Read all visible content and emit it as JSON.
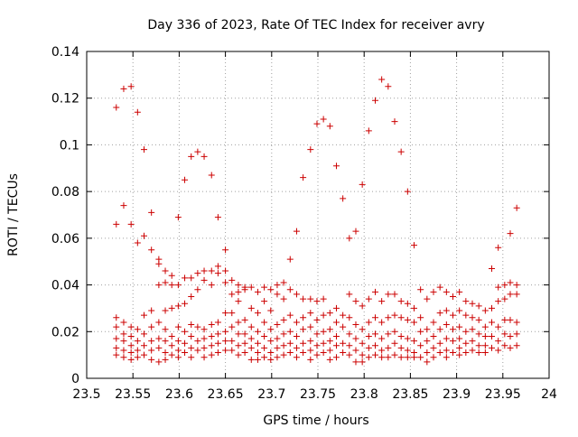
{
  "chart_data": {
    "type": "scatter",
    "title": "Day 336 of 2023, Rate Of TEC Index for receiver avry",
    "xlabel": "GPS time / hours",
    "ylabel": "ROTI / TECUs",
    "xlim": [
      23.5,
      24.0
    ],
    "ylim": [
      0,
      0.14
    ],
    "xticks": [
      "23.5",
      "23.55",
      "23.6",
      "23.65",
      "23.7",
      "23.75",
      "23.8",
      "23.85",
      "23.9",
      "23.95",
      "24"
    ],
    "yticks": [
      "0",
      "0.02",
      "0.04",
      "0.06",
      "0.08",
      "0.1",
      "0.12",
      "0.14"
    ],
    "grid": true,
    "marker": "+",
    "color": "#cc0000",
    "points": [
      [
        23.532,
        0.116
      ],
      [
        23.532,
        0.066
      ],
      [
        23.532,
        0.026
      ],
      [
        23.532,
        0.022
      ],
      [
        23.532,
        0.017
      ],
      [
        23.532,
        0.013
      ],
      [
        23.532,
        0.01
      ],
      [
        23.54,
        0.124
      ],
      [
        23.54,
        0.074
      ],
      [
        23.54,
        0.024
      ],
      [
        23.54,
        0.019
      ],
      [
        23.54,
        0.016
      ],
      [
        23.54,
        0.012
      ],
      [
        23.54,
        0.009
      ],
      [
        23.548,
        0.125
      ],
      [
        23.548,
        0.066
      ],
      [
        23.548,
        0.022
      ],
      [
        23.548,
        0.018
      ],
      [
        23.548,
        0.014
      ],
      [
        23.548,
        0.011
      ],
      [
        23.548,
        0.008
      ],
      [
        23.555,
        0.114
      ],
      [
        23.555,
        0.058
      ],
      [
        23.555,
        0.021
      ],
      [
        23.555,
        0.016
      ],
      [
        23.555,
        0.012
      ],
      [
        23.555,
        0.009
      ],
      [
        23.562,
        0.098
      ],
      [
        23.562,
        0.061
      ],
      [
        23.562,
        0.027
      ],
      [
        23.562,
        0.019
      ],
      [
        23.562,
        0.014
      ],
      [
        23.562,
        0.01
      ],
      [
        23.57,
        0.071
      ],
      [
        23.57,
        0.055
      ],
      [
        23.57,
        0.029
      ],
      [
        23.57,
        0.022
      ],
      [
        23.57,
        0.016
      ],
      [
        23.57,
        0.012
      ],
      [
        23.57,
        0.008
      ],
      [
        23.578,
        0.051
      ],
      [
        23.578,
        0.049
      ],
      [
        23.578,
        0.04
      ],
      [
        23.578,
        0.024
      ],
      [
        23.578,
        0.017
      ],
      [
        23.578,
        0.013
      ],
      [
        23.578,
        0.007
      ],
      [
        23.585,
        0.046
      ],
      [
        23.585,
        0.041
      ],
      [
        23.585,
        0.029
      ],
      [
        23.585,
        0.021
      ],
      [
        23.585,
        0.016
      ],
      [
        23.585,
        0.011
      ],
      [
        23.585,
        0.008
      ],
      [
        23.592,
        0.044
      ],
      [
        23.592,
        0.04
      ],
      [
        23.592,
        0.03
      ],
      [
        23.592,
        0.018
      ],
      [
        23.592,
        0.014
      ],
      [
        23.592,
        0.01
      ],
      [
        23.599,
        0.069
      ],
      [
        23.599,
        0.04
      ],
      [
        23.599,
        0.031
      ],
      [
        23.599,
        0.022
      ],
      [
        23.599,
        0.016
      ],
      [
        23.599,
        0.012
      ],
      [
        23.599,
        0.009
      ],
      [
        23.606,
        0.085
      ],
      [
        23.606,
        0.043
      ],
      [
        23.606,
        0.032
      ],
      [
        23.606,
        0.02
      ],
      [
        23.606,
        0.015
      ],
      [
        23.606,
        0.011
      ],
      [
        23.613,
        0.095
      ],
      [
        23.613,
        0.043
      ],
      [
        23.613,
        0.035
      ],
      [
        23.613,
        0.023
      ],
      [
        23.613,
        0.018
      ],
      [
        23.613,
        0.013
      ],
      [
        23.613,
        0.009
      ],
      [
        23.62,
        0.097
      ],
      [
        23.62,
        0.045
      ],
      [
        23.62,
        0.038
      ],
      [
        23.62,
        0.022
      ],
      [
        23.62,
        0.016
      ],
      [
        23.62,
        0.012
      ],
      [
        23.627,
        0.095
      ],
      [
        23.627,
        0.046
      ],
      [
        23.627,
        0.042
      ],
      [
        23.627,
        0.021
      ],
      [
        23.627,
        0.017
      ],
      [
        23.627,
        0.013
      ],
      [
        23.627,
        0.009
      ],
      [
        23.635,
        0.087
      ],
      [
        23.635,
        0.046
      ],
      [
        23.635,
        0.04
      ],
      [
        23.635,
        0.023
      ],
      [
        23.635,
        0.018
      ],
      [
        23.635,
        0.014
      ],
      [
        23.635,
        0.01
      ],
      [
        23.642,
        0.069
      ],
      [
        23.642,
        0.048
      ],
      [
        23.642,
        0.045
      ],
      [
        23.642,
        0.024
      ],
      [
        23.642,
        0.019
      ],
      [
        23.642,
        0.015
      ],
      [
        23.642,
        0.011
      ],
      [
        23.65,
        0.055
      ],
      [
        23.65,
        0.046
      ],
      [
        23.65,
        0.041
      ],
      [
        23.65,
        0.028
      ],
      [
        23.65,
        0.02
      ],
      [
        23.65,
        0.016
      ],
      [
        23.65,
        0.012
      ],
      [
        23.657,
        0.042
      ],
      [
        23.657,
        0.036
      ],
      [
        23.657,
        0.028
      ],
      [
        23.657,
        0.022
      ],
      [
        23.657,
        0.016
      ],
      [
        23.657,
        0.012
      ],
      [
        23.664,
        0.04
      ],
      [
        23.664,
        0.037
      ],
      [
        23.664,
        0.033
      ],
      [
        23.664,
        0.024
      ],
      [
        23.664,
        0.019
      ],
      [
        23.664,
        0.014
      ],
      [
        23.664,
        0.01
      ],
      [
        23.671,
        0.039
      ],
      [
        23.671,
        0.038
      ],
      [
        23.671,
        0.025
      ],
      [
        23.671,
        0.019
      ],
      [
        23.671,
        0.015
      ],
      [
        23.671,
        0.011
      ],
      [
        23.678,
        0.039
      ],
      [
        23.678,
        0.03
      ],
      [
        23.678,
        0.022
      ],
      [
        23.678,
        0.017
      ],
      [
        23.678,
        0.013
      ],
      [
        23.678,
        0.008
      ],
      [
        23.685,
        0.037
      ],
      [
        23.685,
        0.028
      ],
      [
        23.685,
        0.02
      ],
      [
        23.685,
        0.015
      ],
      [
        23.685,
        0.011
      ],
      [
        23.685,
        0.008
      ],
      [
        23.692,
        0.039
      ],
      [
        23.692,
        0.033
      ],
      [
        23.692,
        0.024
      ],
      [
        23.692,
        0.018
      ],
      [
        23.692,
        0.013
      ],
      [
        23.692,
        0.009
      ],
      [
        23.699,
        0.038
      ],
      [
        23.699,
        0.029
      ],
      [
        23.699,
        0.021
      ],
      [
        23.699,
        0.016
      ],
      [
        23.699,
        0.011
      ],
      [
        23.699,
        0.008
      ],
      [
        23.706,
        0.04
      ],
      [
        23.706,
        0.036
      ],
      [
        23.706,
        0.023
      ],
      [
        23.706,
        0.017
      ],
      [
        23.706,
        0.013
      ],
      [
        23.706,
        0.009
      ],
      [
        23.713,
        0.041
      ],
      [
        23.713,
        0.034
      ],
      [
        23.713,
        0.025
      ],
      [
        23.713,
        0.019
      ],
      [
        23.713,
        0.014
      ],
      [
        23.713,
        0.01
      ],
      [
        23.72,
        0.051
      ],
      [
        23.72,
        0.038
      ],
      [
        23.72,
        0.027
      ],
      [
        23.72,
        0.02
      ],
      [
        23.72,
        0.015
      ],
      [
        23.72,
        0.011
      ],
      [
        23.727,
        0.063
      ],
      [
        23.727,
        0.036
      ],
      [
        23.727,
        0.024
      ],
      [
        23.727,
        0.018
      ],
      [
        23.727,
        0.013
      ],
      [
        23.727,
        0.009
      ],
      [
        23.734,
        0.086
      ],
      [
        23.734,
        0.034
      ],
      [
        23.734,
        0.026
      ],
      [
        23.734,
        0.021
      ],
      [
        23.734,
        0.015
      ],
      [
        23.734,
        0.011
      ],
      [
        23.742,
        0.098
      ],
      [
        23.742,
        0.034
      ],
      [
        23.742,
        0.028
      ],
      [
        23.742,
        0.022
      ],
      [
        23.742,
        0.016
      ],
      [
        23.742,
        0.012
      ],
      [
        23.742,
        0.008
      ],
      [
        23.749,
        0.109
      ],
      [
        23.749,
        0.033
      ],
      [
        23.749,
        0.025
      ],
      [
        23.749,
        0.019
      ],
      [
        23.749,
        0.014
      ],
      [
        23.749,
        0.01
      ],
      [
        23.756,
        0.111
      ],
      [
        23.756,
        0.034
      ],
      [
        23.756,
        0.027
      ],
      [
        23.756,
        0.02
      ],
      [
        23.756,
        0.015
      ],
      [
        23.756,
        0.011
      ],
      [
        23.763,
        0.108
      ],
      [
        23.763,
        0.028
      ],
      [
        23.763,
        0.021
      ],
      [
        23.763,
        0.016
      ],
      [
        23.763,
        0.012
      ],
      [
        23.763,
        0.008
      ],
      [
        23.77,
        0.091
      ],
      [
        23.77,
        0.03
      ],
      [
        23.77,
        0.024
      ],
      [
        23.77,
        0.018
      ],
      [
        23.77,
        0.014
      ],
      [
        23.77,
        0.009
      ],
      [
        23.777,
        0.077
      ],
      [
        23.777,
        0.027
      ],
      [
        23.777,
        0.022
      ],
      [
        23.777,
        0.015
      ],
      [
        23.777,
        0.011
      ],
      [
        23.784,
        0.06
      ],
      [
        23.784,
        0.036
      ],
      [
        23.784,
        0.026
      ],
      [
        23.784,
        0.019
      ],
      [
        23.784,
        0.014
      ],
      [
        23.784,
        0.01
      ],
      [
        23.791,
        0.063
      ],
      [
        23.791,
        0.033
      ],
      [
        23.791,
        0.023
      ],
      [
        23.791,
        0.017
      ],
      [
        23.791,
        0.012
      ],
      [
        23.791,
        0.007
      ],
      [
        23.798,
        0.083
      ],
      [
        23.798,
        0.031
      ],
      [
        23.798,
        0.021
      ],
      [
        23.798,
        0.015
      ],
      [
        23.798,
        0.01
      ],
      [
        23.798,
        0.007
      ],
      [
        23.805,
        0.106
      ],
      [
        23.805,
        0.034
      ],
      [
        23.805,
        0.024
      ],
      [
        23.805,
        0.018
      ],
      [
        23.805,
        0.013
      ],
      [
        23.805,
        0.009
      ],
      [
        23.812,
        0.119
      ],
      [
        23.812,
        0.037
      ],
      [
        23.812,
        0.026
      ],
      [
        23.812,
        0.019
      ],
      [
        23.812,
        0.014
      ],
      [
        23.812,
        0.01
      ],
      [
        23.819,
        0.128
      ],
      [
        23.819,
        0.033
      ],
      [
        23.819,
        0.024
      ],
      [
        23.819,
        0.017
      ],
      [
        23.819,
        0.012
      ],
      [
        23.819,
        0.009
      ],
      [
        23.826,
        0.125
      ],
      [
        23.826,
        0.036
      ],
      [
        23.826,
        0.026
      ],
      [
        23.826,
        0.019
      ],
      [
        23.826,
        0.013
      ],
      [
        23.826,
        0.009
      ],
      [
        23.833,
        0.11
      ],
      [
        23.833,
        0.036
      ],
      [
        23.833,
        0.027
      ],
      [
        23.833,
        0.02
      ],
      [
        23.833,
        0.015
      ],
      [
        23.833,
        0.01
      ],
      [
        23.84,
        0.097
      ],
      [
        23.84,
        0.033
      ],
      [
        23.84,
        0.026
      ],
      [
        23.84,
        0.018
      ],
      [
        23.84,
        0.013
      ],
      [
        23.84,
        0.009
      ],
      [
        23.847,
        0.08
      ],
      [
        23.847,
        0.032
      ],
      [
        23.847,
        0.025
      ],
      [
        23.847,
        0.017
      ],
      [
        23.847,
        0.012
      ],
      [
        23.847,
        0.009
      ],
      [
        23.854,
        0.057
      ],
      [
        23.854,
        0.03
      ],
      [
        23.854,
        0.024
      ],
      [
        23.854,
        0.016
      ],
      [
        23.854,
        0.011
      ],
      [
        23.854,
        0.009
      ],
      [
        23.861,
        0.038
      ],
      [
        23.861,
        0.026
      ],
      [
        23.861,
        0.02
      ],
      [
        23.861,
        0.014
      ],
      [
        23.861,
        0.009
      ],
      [
        23.868,
        0.034
      ],
      [
        23.868,
        0.021
      ],
      [
        23.868,
        0.016
      ],
      [
        23.868,
        0.011
      ],
      [
        23.868,
        0.007
      ],
      [
        23.875,
        0.037
      ],
      [
        23.875,
        0.024
      ],
      [
        23.875,
        0.018
      ],
      [
        23.875,
        0.013
      ],
      [
        23.875,
        0.009
      ],
      [
        23.882,
        0.039
      ],
      [
        23.882,
        0.028
      ],
      [
        23.882,
        0.021
      ],
      [
        23.882,
        0.015
      ],
      [
        23.882,
        0.011
      ],
      [
        23.889,
        0.037
      ],
      [
        23.889,
        0.029
      ],
      [
        23.889,
        0.023
      ],
      [
        23.889,
        0.017
      ],
      [
        23.889,
        0.012
      ],
      [
        23.889,
        0.009
      ],
      [
        23.896,
        0.035
      ],
      [
        23.896,
        0.027
      ],
      [
        23.896,
        0.021
      ],
      [
        23.896,
        0.016
      ],
      [
        23.896,
        0.011
      ],
      [
        23.903,
        0.037
      ],
      [
        23.903,
        0.029
      ],
      [
        23.903,
        0.022
      ],
      [
        23.903,
        0.017
      ],
      [
        23.903,
        0.013
      ],
      [
        23.903,
        0.01
      ],
      [
        23.91,
        0.033
      ],
      [
        23.91,
        0.027
      ],
      [
        23.91,
        0.02
      ],
      [
        23.91,
        0.015
      ],
      [
        23.91,
        0.011
      ],
      [
        23.917,
        0.032
      ],
      [
        23.917,
        0.026
      ],
      [
        23.917,
        0.021
      ],
      [
        23.917,
        0.016
      ],
      [
        23.917,
        0.012
      ],
      [
        23.924,
        0.031
      ],
      [
        23.924,
        0.025
      ],
      [
        23.924,
        0.019
      ],
      [
        23.924,
        0.014
      ],
      [
        23.924,
        0.011
      ],
      [
        23.931,
        0.029
      ],
      [
        23.931,
        0.022
      ],
      [
        23.931,
        0.018
      ],
      [
        23.931,
        0.014
      ],
      [
        23.931,
        0.011
      ],
      [
        23.938,
        0.047
      ],
      [
        23.938,
        0.03
      ],
      [
        23.938,
        0.024
      ],
      [
        23.938,
        0.018
      ],
      [
        23.938,
        0.013
      ],
      [
        23.945,
        0.056
      ],
      [
        23.945,
        0.039
      ],
      [
        23.945,
        0.033
      ],
      [
        23.945,
        0.022
      ],
      [
        23.945,
        0.016
      ],
      [
        23.945,
        0.012
      ],
      [
        23.952,
        0.04
      ],
      [
        23.952,
        0.034
      ],
      [
        23.952,
        0.025
      ],
      [
        23.952,
        0.019
      ],
      [
        23.952,
        0.014
      ],
      [
        23.958,
        0.062
      ],
      [
        23.958,
        0.041
      ],
      [
        23.958,
        0.036
      ],
      [
        23.958,
        0.025
      ],
      [
        23.958,
        0.018
      ],
      [
        23.958,
        0.013
      ],
      [
        23.965,
        0.073
      ],
      [
        23.965,
        0.04
      ],
      [
        23.965,
        0.036
      ],
      [
        23.965,
        0.024
      ],
      [
        23.965,
        0.019
      ],
      [
        23.965,
        0.014
      ]
    ]
  }
}
